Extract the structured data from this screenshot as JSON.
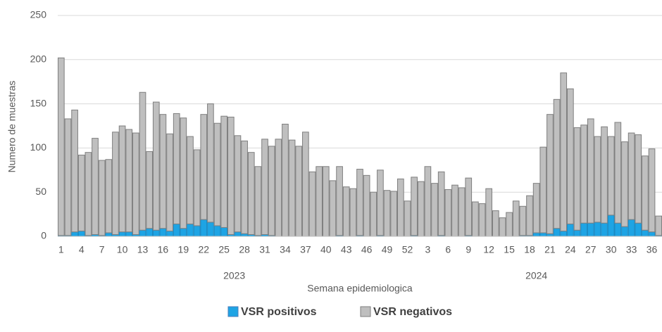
{
  "chart_data": {
    "type": "stacked_bar",
    "xlabel": "Semana epidemiologica",
    "ylabel": "Numero de muestras",
    "categories": [
      "1",
      null,
      null,
      "4",
      null,
      null,
      "7",
      null,
      null,
      "10",
      null,
      null,
      "13",
      null,
      null,
      "16",
      null,
      null,
      "19",
      null,
      null,
      "22",
      null,
      null,
      "25",
      null,
      null,
      "28",
      null,
      null,
      "31",
      null,
      null,
      "34",
      null,
      null,
      "37",
      null,
      null,
      "40",
      null,
      null,
      "43",
      null,
      null,
      "46",
      null,
      null,
      "49",
      null,
      null,
      "52",
      null,
      null,
      "3",
      null,
      null,
      "6",
      null,
      null,
      "9",
      null,
      null,
      "12",
      null,
      null,
      "15",
      null,
      null,
      "18",
      null,
      null,
      "21",
      null,
      null,
      "24",
      null,
      null,
      "27",
      null,
      null,
      "30",
      null,
      null,
      "33",
      null,
      null,
      "36",
      null
    ],
    "x_groups": [
      {
        "label": "2023",
        "size": 52
      },
      {
        "label": "2024",
        "size": 37
      }
    ],
    "series": [
      {
        "name": "VSR positivos",
        "color": "#1ea4e4",
        "values": [
          1,
          1,
          5,
          6,
          1,
          2,
          1,
          4,
          2,
          5,
          5,
          2,
          7,
          9,
          7,
          9,
          6,
          14,
          9,
          14,
          12,
          19,
          16,
          12,
          10,
          2,
          5,
          3,
          2,
          1,
          2,
          1,
          0,
          0,
          0,
          0,
          0,
          0,
          0,
          0,
          0,
          1,
          0,
          0,
          1,
          0,
          0,
          1,
          0,
          0,
          0,
          0,
          1,
          0,
          0,
          0,
          1,
          0,
          0,
          0,
          1,
          0,
          0,
          0,
          0,
          0,
          0,
          0,
          1,
          1,
          4,
          4,
          3,
          9,
          6,
          14,
          7,
          15,
          15,
          16,
          15,
          24,
          15,
          11,
          19,
          15,
          7,
          5,
          1
        ]
      },
      {
        "name": "VSR negativos",
        "color": "#bfbfbf",
        "values": [
          201,
          132,
          138,
          86,
          94,
          109,
          85,
          83,
          116,
          120,
          116,
          115,
          156,
          87,
          145,
          129,
          110,
          125,
          125,
          99,
          86,
          119,
          134,
          116,
          126,
          133,
          109,
          105,
          93,
          78,
          108,
          101,
          110,
          127,
          109,
          102,
          118,
          73,
          79,
          79,
          63,
          78,
          56,
          54,
          75,
          69,
          50,
          74,
          52,
          51,
          65,
          40,
          66,
          62,
          79,
          60,
          72,
          53,
          58,
          55,
          65,
          39,
          37,
          54,
          29,
          21,
          27,
          40,
          33,
          45,
          56,
          97,
          135,
          146,
          179,
          153,
          116,
          111,
          118,
          97,
          109,
          89,
          114,
          96,
          98,
          100,
          84,
          94,
          22
        ]
      }
    ],
    "ylim": [
      0,
      250
    ],
    "yticks": [
      0,
      50,
      100,
      150,
      200,
      250
    ],
    "grid": true
  }
}
